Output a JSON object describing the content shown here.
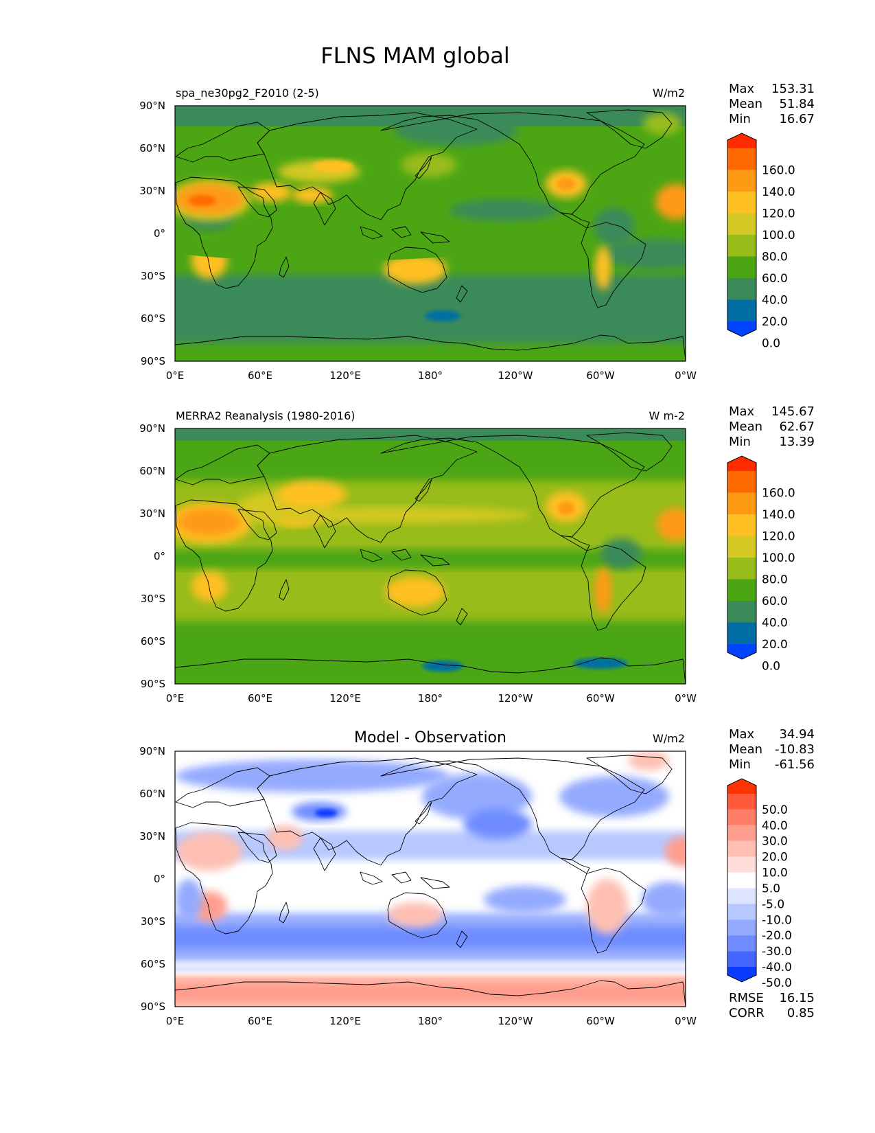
{
  "figure_title": "FLNS MAM global",
  "lon_ticks": [
    "0°E",
    "60°E",
    "120°E",
    "180°",
    "120°W",
    "60°W",
    "0°W"
  ],
  "lat_ticks": [
    "90°N",
    "60°N",
    "30°N",
    "0°",
    "30°S",
    "60°S",
    "90°S"
  ],
  "stat_labels": {
    "max": "Max",
    "mean": "Mean",
    "min": "Min",
    "rmse": "RMSE",
    "corr": "CORR"
  },
  "panels": [
    {
      "id": "model",
      "left_title": "spa_ne30pg2_F2010 (2-5)",
      "center_title": "",
      "units": "W/m2",
      "stats": {
        "max": "153.31",
        "mean": "51.84",
        "min": "16.67"
      },
      "colorbar": {
        "labels": [
          "160.0",
          "140.0",
          "120.0",
          "100.0",
          "80.0",
          "60.0",
          "40.0",
          "20.0",
          "0.0"
        ],
        "colors": [
          "#ff2a00",
          "#ff6a00",
          "#ff9a14",
          "#ffc024",
          "#d4c824",
          "#98bc1a",
          "#4ca614",
          "#3a8a5a",
          "#006ea4",
          "#0044ff"
        ]
      }
    },
    {
      "id": "obs",
      "left_title": "MERRA2 Reanalysis (1980-2016)",
      "center_title": "",
      "units": "W m-2",
      "stats": {
        "max": "145.67",
        "mean": "62.67",
        "min": "13.39"
      },
      "colorbar": {
        "labels": [
          "160.0",
          "140.0",
          "120.0",
          "100.0",
          "80.0",
          "60.0",
          "40.0",
          "20.0",
          "0.0"
        ],
        "colors": [
          "#ff2a00",
          "#ff6a00",
          "#ff9a14",
          "#ffc024",
          "#d4c824",
          "#98bc1a",
          "#4ca614",
          "#3a8a5a",
          "#006ea4",
          "#0044ff"
        ]
      }
    },
    {
      "id": "diff",
      "left_title": "",
      "center_title": "Model - Observation",
      "units": "W/m2",
      "stats": {
        "max": "34.94",
        "mean": "-10.83",
        "min": "-61.56",
        "rmse": "16.15",
        "corr": "0.85"
      },
      "colorbar": {
        "labels": [
          "50.0",
          "40.0",
          "30.0",
          "20.0",
          "10.0",
          "5.0",
          "-5.0",
          "-10.0",
          "-20.0",
          "-30.0",
          "-40.0",
          "-50.0"
        ],
        "colors": [
          "#ff3300",
          "#ff5a3a",
          "#ff7c66",
          "#ff9e8e",
          "#ffbfb2",
          "#ffdeda",
          "#ffffff",
          "#dce4ff",
          "#b6c8ff",
          "#94aaff",
          "#6e8cff",
          "#4466ff",
          "#0a3cff"
        ]
      }
    }
  ],
  "colors": {
    "model_ocean": "#4ca614",
    "model_south_ocean": "#3a8a5a",
    "obs_ocean": "#98bc1a",
    "diff_background": "#ffffff",
    "coastline": "#000000"
  }
}
